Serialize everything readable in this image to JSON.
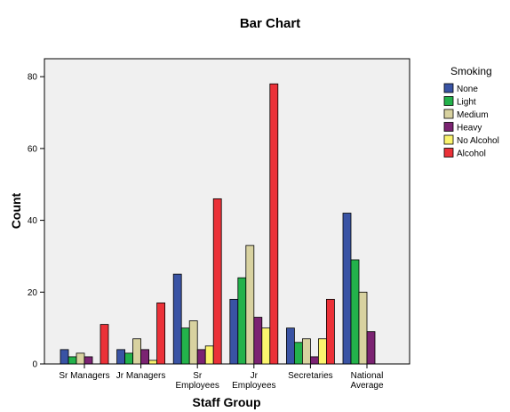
{
  "chart_data": {
    "type": "bar",
    "title": "Bar Chart",
    "xlabel": "Staff Group",
    "ylabel": "Count",
    "ylim": [
      0,
      85
    ],
    "yticks": [
      0,
      20,
      40,
      60,
      80
    ],
    "grid": false,
    "legend": {
      "title": "Smoking",
      "placement": "right"
    },
    "categories": [
      [
        "Sr Managers"
      ],
      [
        "Jr Managers"
      ],
      [
        "Sr",
        "Employees"
      ],
      [
        "Jr",
        "Employees"
      ],
      [
        "Secretaries"
      ],
      [
        "National",
        "Average"
      ]
    ],
    "series": [
      {
        "name": "None",
        "color": "#3953a4",
        "values": [
          4,
          4,
          25,
          18,
          10,
          42
        ]
      },
      {
        "name": "Light",
        "color": "#23b24b",
        "values": [
          2,
          3,
          10,
          24,
          6,
          29
        ]
      },
      {
        "name": "Medium",
        "color": "#d8d2a0",
        "values": [
          3,
          7,
          12,
          33,
          7,
          20
        ]
      },
      {
        "name": "Heavy",
        "color": "#7b2372",
        "values": [
          2,
          4,
          4,
          13,
          2,
          9
        ]
      },
      {
        "name": "No Alcohol",
        "color": "#fbf46e",
        "values": [
          0,
          1,
          5,
          10,
          7,
          0
        ]
      },
      {
        "name": "Alcohol",
        "color": "#eb3138",
        "values": [
          11,
          17,
          46,
          78,
          18,
          0
        ]
      }
    ],
    "colors": {
      "plot_background": "#f0f0f0",
      "bar_outline": "#000000"
    }
  }
}
